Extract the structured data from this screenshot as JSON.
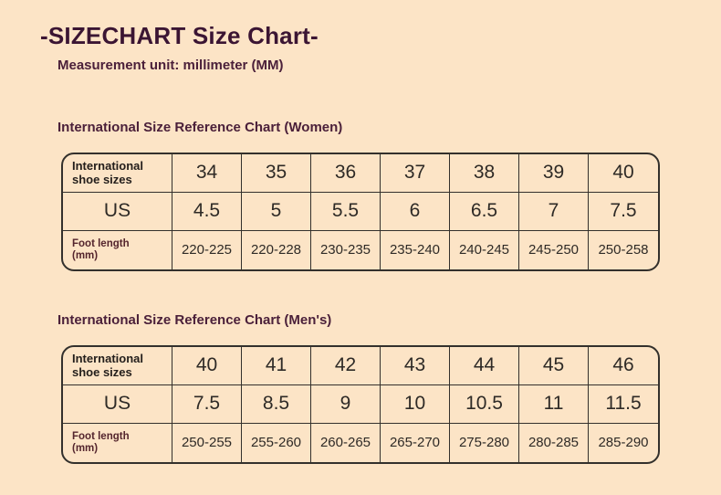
{
  "page": {
    "title": "-SIZECHART Size Chart-",
    "subtitle": "Measurement unit: millimeter (MM)"
  },
  "colors": {
    "background": "#fce4c6",
    "title_text": "#3b1533",
    "heading_text": "#4b203a",
    "table_border": "#33302c",
    "cell_text": "#2e2a26",
    "foot_label_text": "#54252d"
  },
  "tables": [
    {
      "title": "International Size Reference Chart (Women)",
      "rows": [
        {
          "label": "International shoe sizes",
          "values": [
            "34",
            "35",
            "36",
            "37",
            "38",
            "39",
            "40"
          ]
        },
        {
          "label": "US",
          "values": [
            "4.5",
            "5",
            "5.5",
            "6",
            "6.5",
            "7",
            "7.5"
          ]
        },
        {
          "label": "Foot length (mm)",
          "values": [
            "220-225",
            "220-228",
            "230-235",
            "235-240",
            "240-245",
            "245-250",
            "250-258"
          ]
        }
      ]
    },
    {
      "title": "International Size Reference Chart (Men's)",
      "rows": [
        {
          "label": "International shoe sizes",
          "values": [
            "40",
            "41",
            "42",
            "43",
            "44",
            "45",
            "46"
          ]
        },
        {
          "label": "US",
          "values": [
            "7.5",
            "8.5",
            "9",
            "10",
            "10.5",
            "11",
            "11.5"
          ]
        },
        {
          "label": "Foot length (mm)",
          "values": [
            "250-255",
            "255-260",
            "260-265",
            "265-270",
            "275-280",
            "280-285",
            "285-290"
          ]
        }
      ]
    }
  ]
}
